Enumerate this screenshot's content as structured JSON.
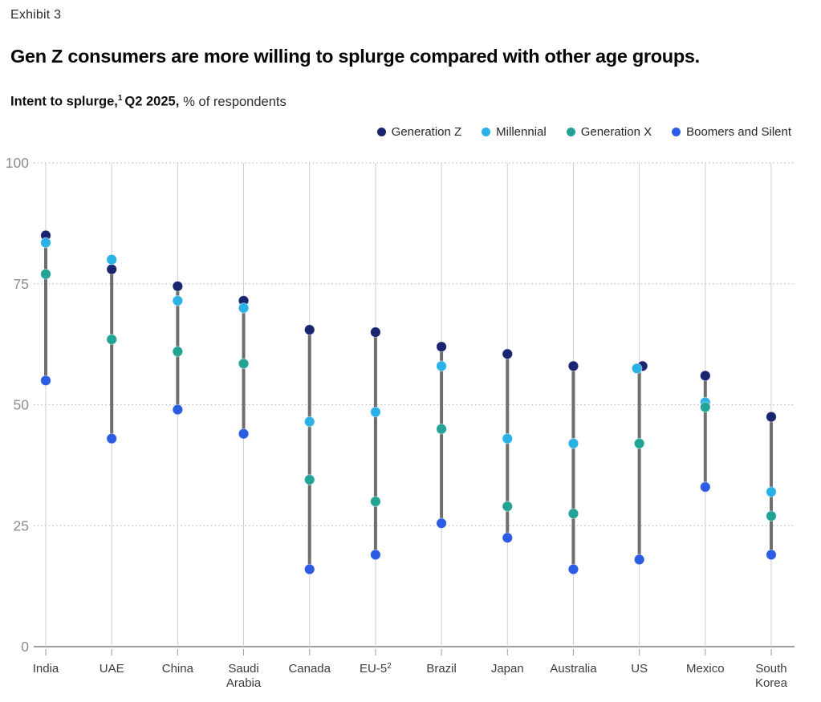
{
  "header": {
    "exhibit_label": "Exhibit 3",
    "title": "Gen Z consumers are more willing to splurge compared with other age groups.",
    "subtitle": {
      "bold_part1": "Intent to splurge,",
      "footnote_sup": "1",
      "bold_part2": "Q2 2025,",
      "regular_part": "% of respondents"
    }
  },
  "chart_data": {
    "type": "dumbbell-dot",
    "title": "Intent to splurge, Q2 2025",
    "ylabel": "% of respondents",
    "ylim": [
      0,
      100
    ],
    "yticks": [
      0,
      25,
      50,
      75,
      100
    ],
    "grid": "dotted-horizontal",
    "legend_position": "top-right",
    "categories": [
      {
        "lines": [
          "India"
        ]
      },
      {
        "lines": [
          "UAE"
        ]
      },
      {
        "lines": [
          "China"
        ]
      },
      {
        "lines": [
          "Saudi",
          "Arabia"
        ]
      },
      {
        "lines": [
          "Canada"
        ]
      },
      {
        "lines": [
          "EU-5"
        ],
        "sup": "2"
      },
      {
        "lines": [
          "Brazil"
        ]
      },
      {
        "lines": [
          "Japan"
        ]
      },
      {
        "lines": [
          "Australia"
        ]
      },
      {
        "lines": [
          "US"
        ]
      },
      {
        "lines": [
          "Mexico"
        ]
      },
      {
        "lines": [
          "South",
          "Korea"
        ]
      }
    ],
    "series": [
      {
        "name": "Generation Z",
        "color": "#19256f",
        "values": [
          85,
          78,
          74.5,
          71.5,
          65.5,
          65,
          62,
          60.5,
          58,
          58,
          56,
          47.5
        ]
      },
      {
        "name": "Millennial",
        "color": "#2ab1e6",
        "values": [
          83.5,
          80,
          71.5,
          70,
          46.5,
          48.5,
          58,
          43,
          42,
          57.5,
          50.5,
          32
        ]
      },
      {
        "name": "Generation X",
        "color": "#23a296",
        "values": [
          77,
          63.5,
          61,
          58.5,
          34.5,
          30,
          45,
          29,
          27.5,
          42,
          49.5,
          27
        ]
      },
      {
        "name": "Boomers and Silent",
        "color": "#2d5ce4",
        "values": [
          55,
          43,
          49,
          44,
          16,
          19,
          25.5,
          22.5,
          16,
          18,
          33,
          19
        ]
      }
    ],
    "colors": {
      "range_bar": "#6e6e6e",
      "column_line": "#cdcdcd",
      "gridline": "#b0b0b0",
      "axis_line": "#7d7d7d",
      "tick_label": "#8c8c8c",
      "category_label": "#3b3b3b"
    }
  }
}
